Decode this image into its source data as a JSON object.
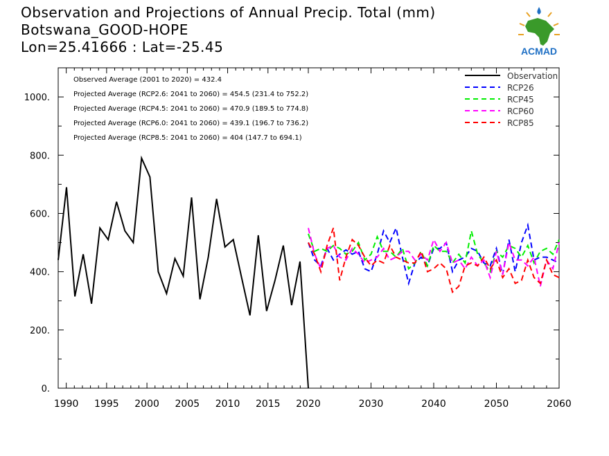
{
  "header": {
    "title": "Observation and Projections of Annual Precip. Total (mm)",
    "location": "Botswana_GOOD-HOPE",
    "coords": "Lon=25.41666 : Lat=-25.45"
  },
  "logo": {
    "text": "ACMAD",
    "icon": "africa-map-icon"
  },
  "colors": {
    "Observation": "#000000",
    "RCP26": "#0000ff",
    "RCP45": "#00ee00",
    "RCP60": "#ff00ff",
    "RCP85": "#ff0000"
  },
  "chart_data": {
    "type": "line",
    "title": "Observation and Projections of Annual Precip. Total (mm)",
    "xlabel": "",
    "ylabel": "",
    "ylim": [
      0,
      1100
    ],
    "yticks": [
      0,
      200,
      400,
      600,
      800,
      1000
    ],
    "ytick_labels": [
      "0.",
      "200.",
      "400.",
      "600.",
      "800.",
      "1000."
    ],
    "xticks_obs": [
      1990,
      1995,
      2000,
      2005,
      2010,
      2015,
      2020
    ],
    "xticks_proj": [
      2030,
      2040,
      2050,
      2060
    ],
    "legend_position": "top-right",
    "annotations": [
      "Observed Average (2001 to 2020) = 432.4",
      "Projected Average (RCP2.6: 2041 to 2060) = 454.5 (231.4 to 752.2)",
      "Projected Average (RCP4.5: 2041 to 2060) = 470.9 (189.5 to 774.8)",
      "Projected Average (RCP6.0: 2041 to 2060) = 439.1 (196.7 to 736.2)",
      "Projected Average (RCP8.5: 2041 to 2060) = 404 (147.7 to 694.1)"
    ],
    "observation": {
      "name": "Observation",
      "x": [
        1989,
        1990,
        1991,
        1992,
        1993,
        1994,
        1995,
        1996,
        1997,
        1998,
        1999,
        2000,
        2001,
        2002,
        2003,
        2004,
        2005,
        2006,
        2007,
        2008,
        2009,
        2010,
        2011,
        2012,
        2013,
        2014,
        2015,
        2016,
        2017,
        2018,
        2019,
        2020
      ],
      "values": [
        440,
        690,
        315,
        460,
        290,
        550,
        510,
        640,
        540,
        500,
        790,
        725,
        400,
        325,
        445,
        385,
        655,
        305,
        450,
        650,
        485,
        510,
        380,
        250,
        525,
        265,
        370,
        490,
        285,
        435,
        0,
        0
      ]
    },
    "projections": {
      "x_start": 2020,
      "x_end": 2060,
      "series": [
        {
          "name": "RCP26",
          "values": [
            500,
            440,
            420,
            480,
            440,
            460,
            475,
            460,
            470,
            410,
            400,
            460,
            540,
            500,
            550,
            450,
            360,
            430,
            450,
            420,
            480,
            480,
            500,
            400,
            440,
            450,
            480,
            470,
            430,
            420,
            480,
            390,
            510,
            400,
            500,
            560,
            440,
            450,
            450,
            440,
            430
          ]
        },
        {
          "name": "RCP45",
          "values": [
            530,
            470,
            480,
            470,
            490,
            480,
            460,
            470,
            500,
            440,
            460,
            520,
            470,
            470,
            450,
            480,
            410,
            430,
            470,
            420,
            490,
            470,
            470,
            430,
            460,
            430,
            540,
            460,
            430,
            400,
            470,
            450,
            490,
            480,
            450,
            490,
            430,
            470,
            480,
            460,
            510
          ]
        },
        {
          "name": "RCP60",
          "values": [
            550,
            460,
            410,
            480,
            490,
            450,
            440,
            480,
            460,
            430,
            440,
            450,
            480,
            440,
            450,
            470,
            470,
            440,
            460,
            440,
            510,
            470,
            500,
            430,
            440,
            410,
            450,
            420,
            440,
            380,
            470,
            390,
            500,
            440,
            440,
            420,
            450,
            350,
            440,
            410,
            500
          ]
        },
        {
          "name": "RCP85",
          "values": [
            500,
            460,
            400,
            490,
            550,
            370,
            450,
            510,
            490,
            450,
            420,
            440,
            430,
            490,
            450,
            440,
            430,
            430,
            470,
            400,
            410,
            430,
            410,
            330,
            350,
            420,
            430,
            420,
            450,
            410,
            440,
            380,
            410,
            360,
            370,
            440,
            380,
            360,
            440,
            390,
            380
          ]
        }
      ]
    }
  }
}
